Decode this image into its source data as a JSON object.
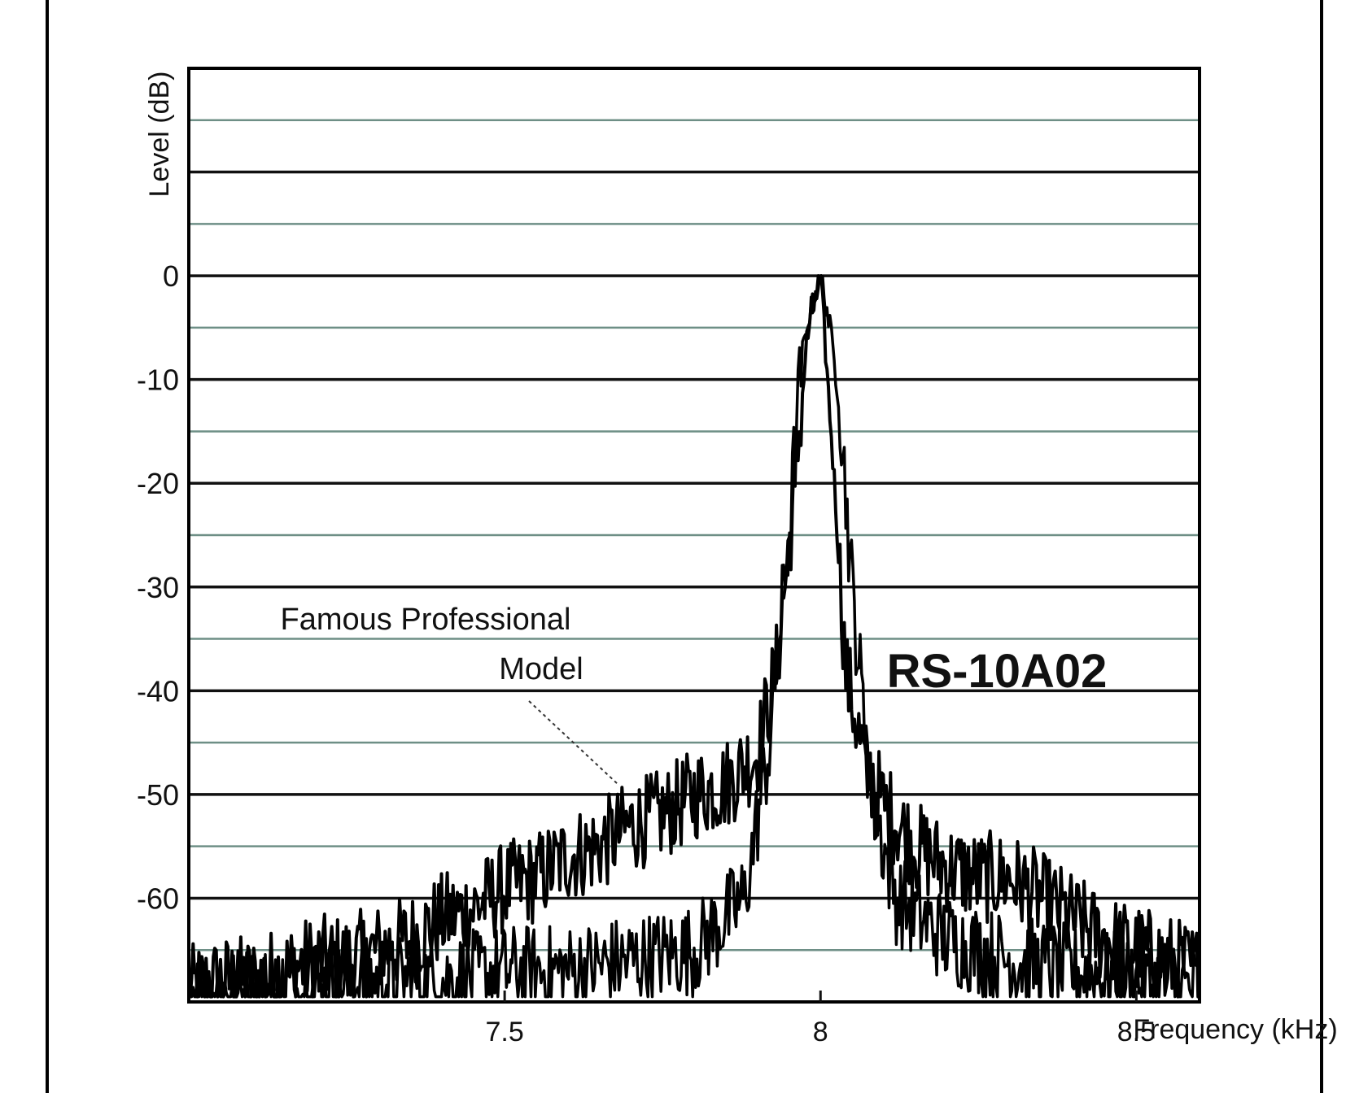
{
  "chart_data": {
    "type": "line",
    "title": "",
    "xlabel": "Frequency (kHz)",
    "ylabel": "Level (dB)",
    "x_range": [
      7.0,
      8.6
    ],
    "ylim": [
      -70,
      20
    ],
    "x_ticks": [
      7.5,
      8,
      8.5
    ],
    "x_tick_labels": [
      "7.5",
      "8",
      "8.5"
    ],
    "y_ticks": [
      0,
      -10,
      -20,
      -30,
      -40,
      -50,
      -60
    ],
    "y_tick_labels": [
      "0",
      "-10",
      "-20",
      "-30",
      "-40",
      "-50",
      "-60"
    ],
    "grid": true,
    "annotations": [
      {
        "text": "Famous Professional Model",
        "lines": [
          "Famous Professional",
          "Model"
        ]
      },
      {
        "text": "RS-10A02"
      }
    ],
    "series": [
      {
        "name": "Famous Professional Model",
        "x": [
          7.0,
          7.05,
          7.1,
          7.15,
          7.2,
          7.25,
          7.3,
          7.35,
          7.4,
          7.45,
          7.5,
          7.55,
          7.6,
          7.65,
          7.7,
          7.75,
          7.8,
          7.85,
          7.9,
          7.93,
          7.96,
          7.98,
          8.0,
          8.02,
          8.04,
          8.07,
          8.1,
          8.15,
          8.2,
          8.25,
          8.3,
          8.35,
          8.4,
          8.45,
          8.5,
          8.55,
          8.6
        ],
        "y": [
          -69,
          -68,
          -68,
          -67,
          -66,
          -66,
          -65,
          -64,
          -62,
          -61,
          -59,
          -58,
          -56,
          -55,
          -53,
          -52,
          -50,
          -49,
          -46,
          -38,
          -20,
          -5,
          0,
          -18,
          -38,
          -47,
          -51,
          -55,
          -57,
          -58,
          -58,
          -60,
          -62,
          -64,
          -65,
          -66,
          -67
        ]
      },
      {
        "name": "RS-10A02",
        "x": [
          7.0,
          7.1,
          7.2,
          7.3,
          7.4,
          7.5,
          7.6,
          7.7,
          7.8,
          7.88,
          7.92,
          7.95,
          7.97,
          7.99,
          8.0,
          8.01,
          8.03,
          8.05,
          8.08,
          8.12,
          8.2,
          8.3,
          8.4,
          8.5,
          8.6
        ],
        "y": [
          -69,
          -69,
          -69,
          -68,
          -68,
          -67,
          -67,
          -66,
          -65,
          -60,
          -45,
          -25,
          -8,
          -2,
          0,
          -3,
          -12,
          -30,
          -50,
          -60,
          -64,
          -66,
          -67,
          -68,
          -69
        ]
      }
    ]
  }
}
